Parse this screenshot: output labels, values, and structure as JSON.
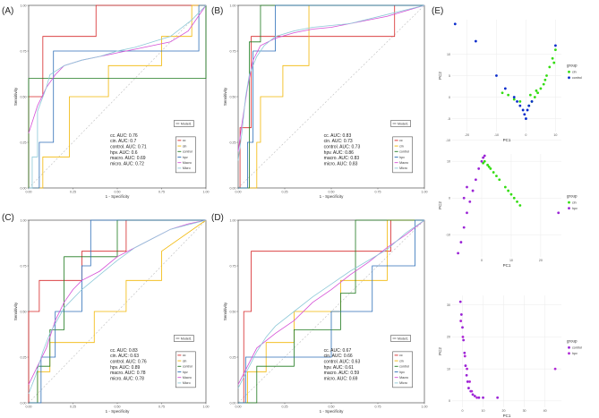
{
  "colors": {
    "cc": "#d62728",
    "cin": "#f2b705",
    "control": "#1f7a1f",
    "hpv": "#2d6fb8",
    "macro": "#d44fd6",
    "micro": "#8ec9d8",
    "ref": "#bdbdbd",
    "pca_green": "#33dd11",
    "pca_blue": "#0a2ccc",
    "pca_purple": "#9b24d6",
    "pca_magenta": "#b02ad6"
  },
  "roc_common": {
    "xlabel": "1 - Specificity",
    "ylabel": "Sensitivity",
    "ticks": [
      "0.00",
      "0.25",
      "0.50",
      "0.75",
      "1.00"
    ],
    "legend_title": "Model1",
    "legend_items": [
      "cc",
      "cin",
      "control",
      "hpv",
      "Macro",
      "Micro"
    ]
  },
  "chart_data": [
    {
      "type": "line",
      "panel": "(A)",
      "title": "",
      "xlabel": "1 - Specificity",
      "ylabel": "Sensitivity",
      "xlim": [
        0,
        1
      ],
      "ylim": [
        0,
        1
      ],
      "auc_labels": [
        "cc. AUC: 0.76",
        "cin. AUC: 0.7",
        "control. AUC: 0.71",
        "hpv. AUC: 0.6",
        "macro. AUC: 0.69",
        "micro. AUC: 0.72"
      ],
      "series": [
        {
          "name": "cc",
          "x": [
            0,
            0,
            0.08,
            0.08,
            0.38,
            0.38,
            0.62,
            0.62,
            1
          ],
          "y": [
            0,
            0.5,
            0.5,
            0.83,
            0.83,
            1,
            1,
            1,
            1
          ]
        },
        {
          "name": "cin",
          "x": [
            0,
            0.08,
            0.08,
            0.23,
            0.23,
            0.45,
            0.45,
            0.75,
            0.75,
            0.92,
            0.92,
            1
          ],
          "y": [
            0,
            0,
            0.17,
            0.17,
            0.5,
            0.5,
            0.67,
            0.67,
            0.83,
            0.83,
            1,
            1
          ]
        },
        {
          "name": "control",
          "x": [
            0,
            0,
            0.08,
            0.08,
            0.62,
            0.62,
            1,
            1
          ],
          "y": [
            0,
            0.6,
            0.6,
            0.6,
            0.6,
            0.6,
            0.6,
            1
          ]
        },
        {
          "name": "hpv",
          "x": [
            0,
            0.06,
            0.06,
            0.14,
            0.14,
            0.3,
            0.3,
            0.96,
            0.96,
            1
          ],
          "y": [
            0,
            0,
            0.25,
            0.25,
            0.75,
            0.75,
            0.75,
            0.75,
            1,
            1
          ]
        },
        {
          "name": "Macro",
          "x": [
            0,
            0.05,
            0.1,
            0.15,
            0.2,
            0.3,
            0.4,
            0.5,
            0.6,
            0.7,
            0.8,
            0.9,
            1
          ],
          "y": [
            0.3,
            0.45,
            0.55,
            0.62,
            0.67,
            0.7,
            0.72,
            0.74,
            0.76,
            0.78,
            0.8,
            0.86,
            1
          ]
        },
        {
          "name": "Micro",
          "x": [
            0,
            0.02,
            0.02,
            0.05,
            0.05,
            0.1,
            0.12,
            0.2,
            0.3,
            0.4,
            0.5,
            0.6,
            0.7,
            0.8,
            0.92,
            1
          ],
          "y": [
            0,
            0,
            0.17,
            0.17,
            0.42,
            0.55,
            0.62,
            0.67,
            0.7,
            0.72,
            0.75,
            0.77,
            0.8,
            0.83,
            0.92,
            1
          ]
        }
      ]
    },
    {
      "type": "line",
      "panel": "(B)",
      "title": "",
      "xlabel": "1 - Specificity",
      "ylabel": "Sensitivity",
      "xlim": [
        0,
        1
      ],
      "ylim": [
        0,
        1
      ],
      "auc_labels": [
        "cc. AUC: 0.83",
        "cin. AUC: 0.73",
        "control. AUC: 0.73",
        "hpv. AUC: 0.86",
        "macro. AUC: 0.83",
        "micro. AUC: 0.83"
      ],
      "series": [
        {
          "name": "cc",
          "x": [
            0,
            0.01,
            0.01,
            0.07,
            0.07,
            0.84,
            0.84,
            1
          ],
          "y": [
            0,
            0,
            0.33,
            0.33,
            0.83,
            0.83,
            1,
            1
          ]
        },
        {
          "name": "cin",
          "x": [
            0,
            0.1,
            0.1,
            0.12,
            0.12,
            0.24,
            0.24,
            0.38,
            0.38,
            1
          ],
          "y": [
            0,
            0,
            0.25,
            0.25,
            0.5,
            0.5,
            0.67,
            0.67,
            1,
            1
          ]
        },
        {
          "name": "control",
          "x": [
            0,
            0.06,
            0.06,
            0.12,
            0.12,
            0.7,
            0.7,
            1
          ],
          "y": [
            0,
            0,
            0.8,
            0.8,
            1,
            1,
            1,
            1
          ]
        },
        {
          "name": "hpv",
          "x": [
            0,
            0.05,
            0.05,
            0.08,
            0.08,
            0.12,
            0.12,
            0.2,
            0.2,
            0.37,
            0.37,
            1
          ],
          "y": [
            0,
            0,
            0.25,
            0.25,
            0.75,
            0.75,
            0.75,
            0.75,
            1,
            1,
            1,
            1
          ]
        },
        {
          "name": "Macro",
          "x": [
            0,
            0.02,
            0.05,
            0.08,
            0.12,
            0.2,
            0.3,
            0.4,
            0.5,
            0.6,
            0.8,
            1
          ],
          "y": [
            0.2,
            0.35,
            0.55,
            0.7,
            0.78,
            0.82,
            0.85,
            0.87,
            0.88,
            0.9,
            0.94,
            1
          ]
        },
        {
          "name": "Micro",
          "x": [
            0,
            0.02,
            0.04,
            0.06,
            0.1,
            0.14,
            0.2,
            0.3,
            0.4,
            0.6,
            0.8,
            1
          ],
          "y": [
            0.15,
            0.3,
            0.5,
            0.62,
            0.72,
            0.78,
            0.83,
            0.86,
            0.88,
            0.9,
            0.95,
            1
          ]
        }
      ]
    },
    {
      "type": "line",
      "panel": "(C)",
      "title": "",
      "xlabel": "1 - Specificity",
      "ylabel": "Sensitivity",
      "xlim": [
        0,
        1
      ],
      "ylim": [
        0,
        1
      ],
      "auc_labels": [
        "cc. AUC: 0.83",
        "cin. AUC: 0.63",
        "control. AUC: 0.76",
        "hpv. AUC: 0.89",
        "macro. AUC: 0.78",
        "micro. AUC: 0.78"
      ],
      "series": [
        {
          "name": "cc",
          "x": [
            0,
            0,
            0.06,
            0.06,
            0.3,
            0.3,
            0.55,
            0.55,
            1
          ],
          "y": [
            0,
            0.5,
            0.5,
            0.67,
            0.67,
            0.83,
            0.83,
            1,
            1
          ]
        },
        {
          "name": "cin",
          "x": [
            0,
            0.05,
            0.05,
            0.12,
            0.12,
            0.37,
            0.37,
            0.55,
            0.55,
            0.75,
            0.75,
            1
          ],
          "y": [
            0,
            0,
            0.17,
            0.17,
            0.33,
            0.33,
            0.5,
            0.5,
            0.67,
            0.67,
            0.83,
            1
          ]
        },
        {
          "name": "control",
          "x": [
            0,
            0.05,
            0.05,
            0.12,
            0.12,
            0.2,
            0.2,
            0.5,
            0.5,
            1
          ],
          "y": [
            0,
            0,
            0.2,
            0.2,
            0.4,
            0.4,
            0.8,
            0.8,
            1,
            1
          ]
        },
        {
          "name": "hpv",
          "x": [
            0,
            0.07,
            0.07,
            0.15,
            0.15,
            0.3,
            0.3,
            0.35,
            0.35,
            1
          ],
          "y": [
            0,
            0,
            0.25,
            0.25,
            0.5,
            0.5,
            0.75,
            0.75,
            1,
            1
          ]
        },
        {
          "name": "Macro",
          "x": [
            0,
            0.05,
            0.1,
            0.15,
            0.2,
            0.25,
            0.3,
            0.4,
            0.5,
            0.6,
            0.7,
            0.8,
            0.9,
            1
          ],
          "y": [
            0.1,
            0.2,
            0.3,
            0.45,
            0.55,
            0.62,
            0.67,
            0.72,
            0.8,
            0.85,
            0.9,
            0.95,
            0.98,
            1
          ]
        },
        {
          "name": "Micro",
          "x": [
            0,
            0.04,
            0.08,
            0.12,
            0.16,
            0.2,
            0.3,
            0.4,
            0.5,
            0.6,
            0.7,
            0.8,
            1
          ],
          "y": [
            0.05,
            0.15,
            0.28,
            0.38,
            0.45,
            0.52,
            0.62,
            0.7,
            0.78,
            0.85,
            0.9,
            0.95,
            1
          ]
        }
      ]
    },
    {
      "type": "line",
      "panel": "(D)",
      "title": "",
      "xlabel": "1 - Specificity",
      "ylabel": "Sensitivity",
      "xlim": [
        0,
        1
      ],
      "ylim": [
        0,
        1
      ],
      "auc_labels": [
        "cc. AUC: 0.67",
        "cin. AUC: 0.66",
        "control. AUC: 0.63",
        "hpv. AUC: 0.61",
        "macro. AUC: 0.59",
        "micro. AUC: 0.69"
      ],
      "series": [
        {
          "name": "cc",
          "x": [
            0,
            0.03,
            0.03,
            0.07,
            0.07,
            0.82,
            0.82,
            1
          ],
          "y": [
            0,
            0,
            0.5,
            0.5,
            0.83,
            0.83,
            1,
            1
          ]
        },
        {
          "name": "cin",
          "x": [
            0,
            0.05,
            0.05,
            0.15,
            0.15,
            0.3,
            0.3,
            0.55,
            0.55,
            0.8,
            0.8,
            1
          ],
          "y": [
            0,
            0,
            0.17,
            0.17,
            0.33,
            0.33,
            0.5,
            0.5,
            0.67,
            0.67,
            1,
            1
          ]
        },
        {
          "name": "control",
          "x": [
            0,
            0.1,
            0.1,
            0.3,
            0.3,
            0.55,
            0.55,
            0.63,
            0.63,
            1
          ],
          "y": [
            0,
            0,
            0.2,
            0.2,
            0.4,
            0.4,
            0.6,
            0.6,
            1,
            1
          ]
        },
        {
          "name": "hpv",
          "x": [
            0,
            0.04,
            0.04,
            0.5,
            0.5,
            0.72,
            0.72,
            0.95,
            0.95,
            1
          ],
          "y": [
            0,
            0,
            0.25,
            0.25,
            0.5,
            0.5,
            0.75,
            0.75,
            1,
            1
          ]
        },
        {
          "name": "Macro",
          "x": [
            0,
            0.05,
            0.1,
            0.2,
            0.3,
            0.4,
            0.5,
            0.6,
            0.7,
            0.8,
            0.9,
            1
          ],
          "y": [
            0.1,
            0.2,
            0.3,
            0.38,
            0.45,
            0.55,
            0.62,
            0.7,
            0.77,
            0.85,
            0.92,
            1
          ]
        },
        {
          "name": "Micro",
          "x": [
            0,
            0.05,
            0.1,
            0.15,
            0.2,
            0.3,
            0.4,
            0.5,
            0.6,
            0.7,
            0.8,
            0.9,
            1
          ],
          "y": [
            0.08,
            0.18,
            0.28,
            0.36,
            0.42,
            0.5,
            0.58,
            0.65,
            0.72,
            0.78,
            0.84,
            0.93,
            1
          ]
        }
      ]
    },
    {
      "type": "scatter",
      "panel": "(E) top",
      "xlabel": "PC1",
      "ylabel": "PC2",
      "xticks": [
        -20,
        -10,
        0,
        10
      ],
      "yticks": [
        -10,
        -5,
        0,
        5,
        10
      ],
      "xlim": [
        -25,
        12
      ],
      "ylim": [
        -8,
        18
      ],
      "legend_title": "group",
      "legend_items": [
        "cin",
        "control"
      ],
      "series": [
        {
          "name": "cin",
          "x": [
            1,
            2,
            3,
            4,
            5,
            6,
            7,
            8,
            9,
            10,
            -2,
            -4,
            -6,
            -8,
            1.5,
            3.5,
            6.5,
            9.5
          ],
          "y": [
            -2,
            -1,
            0,
            1,
            2,
            3,
            5,
            7,
            9,
            11,
            -1,
            -0.5,
            0.5,
            1,
            0.5,
            1.5,
            4,
            8
          ]
        },
        {
          "name": "control",
          "x": [
            -24,
            -17,
            -10,
            -7,
            -4,
            -3,
            -2,
            -1,
            -0.5,
            0,
            0.5,
            1,
            2,
            10
          ],
          "y": [
            17,
            13,
            5,
            2,
            0,
            -1,
            -2,
            -3,
            -4,
            -5,
            -3,
            -2,
            -1,
            12
          ]
        }
      ]
    },
    {
      "type": "scatter",
      "panel": "(E) middle",
      "xlabel": "PC1",
      "ylabel": "PC2",
      "xticks": [
        0,
        10,
        20
      ],
      "yticks": [
        -10,
        0,
        10
      ],
      "xlim": [
        -10,
        27
      ],
      "ylim": [
        -16,
        12
      ],
      "legend_title": "group",
      "legend_items": [
        "cin",
        "hpv"
      ],
      "series": [
        {
          "name": "cin",
          "x": [
            1,
            2,
            3,
            4,
            5,
            6,
            8,
            9,
            10,
            11,
            12,
            13,
            0.5,
            2.5
          ],
          "y": [
            10,
            9,
            8,
            7,
            6,
            5,
            3,
            2,
            1,
            0,
            -1,
            -2,
            9.5,
            8.5
          ]
        },
        {
          "name": "hpv",
          "x": [
            -8,
            -7,
            -6,
            -5,
            -4,
            -3,
            -2,
            -1,
            0,
            0.5,
            1,
            -6,
            -5,
            26
          ],
          "y": [
            -15,
            -12,
            -8,
            -4,
            -1,
            2,
            5,
            8,
            10,
            11,
            11.5,
            0,
            3,
            -4
          ]
        }
      ]
    },
    {
      "type": "scatter",
      "panel": "(E) bottom",
      "xlabel": "PC1",
      "ylabel": "PC2",
      "xticks": [
        0,
        10,
        20,
        30,
        40
      ],
      "yticks": [
        0,
        10,
        20,
        30
      ],
      "xlim": [
        -5,
        48
      ],
      "ylim": [
        -2,
        33
      ],
      "legend_title": "group",
      "legend_items": [
        "control",
        "hpv"
      ],
      "series": [
        {
          "name": "control",
          "x": [
            -1,
            -0.5,
            0,
            0.5,
            1,
            1.5,
            2,
            2.5,
            3,
            4,
            5,
            6,
            8,
            10,
            17
          ],
          "y": [
            31,
            27,
            23,
            19,
            15,
            11,
            8,
            6,
            4,
            3,
            2,
            1.5,
            1,
            1,
            1
          ]
        },
        {
          "name": "hpv",
          "x": [
            -0.8,
            0.2,
            1.2,
            2.2,
            3.5,
            4.5,
            7,
            45
          ],
          "y": [
            25,
            20,
            14,
            10,
            6,
            3,
            1,
            10
          ]
        }
      ]
    }
  ]
}
